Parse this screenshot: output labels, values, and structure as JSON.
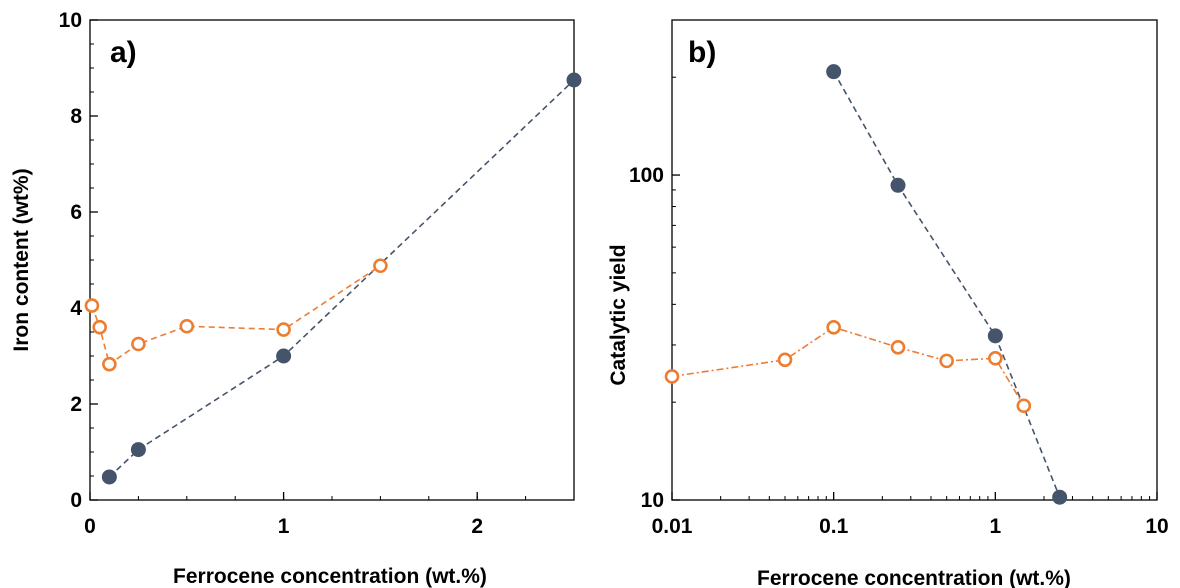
{
  "chart_data": [
    {
      "type": "line",
      "panel_label": "a)",
      "xlabel": "Ferrocene concentration (wt.%)",
      "ylabel": "Iron content (wt%)",
      "xlim": [
        0,
        2.5
      ],
      "ylim": [
        0,
        10
      ],
      "xscale": "linear",
      "yscale": "linear",
      "x_ticks": [
        0,
        1,
        2
      ],
      "x_tick_labels": [
        "0",
        "1",
        "2"
      ],
      "y_ticks": [
        0,
        2,
        4,
        6,
        8,
        10
      ],
      "y_tick_labels": [
        "0",
        "2",
        "4",
        "6",
        "8",
        "10"
      ],
      "grid": false,
      "series": [
        {
          "color": "#44546a",
          "marker": "filled-circle",
          "line_style": "dashed",
          "x": [
            0.1,
            0.25,
            1,
            2.5
          ],
          "y": [
            0.48,
            1.05,
            3.0,
            8.75
          ]
        },
        {
          "color": "#ed7d31",
          "marker": "open-circle",
          "line_style": "dashed",
          "x": [
            0.01,
            0.05,
            0.1,
            0.25,
            0.5,
            1,
            1.5
          ],
          "y": [
            4.05,
            3.6,
            2.83,
            3.25,
            3.62,
            3.55,
            4.88
          ]
        }
      ]
    },
    {
      "type": "line",
      "panel_label": "b)",
      "xlabel": "Ferrocene concentration (wt.%)",
      "ylabel": "Catalytic yield",
      "xlim": [
        0.01,
        10
      ],
      "ylim": [
        10,
        300
      ],
      "xscale": "log",
      "yscale": "log",
      "x_ticks": [
        0.01,
        0.1,
        1,
        10
      ],
      "x_tick_labels": [
        "0.01",
        "0.1",
        "1",
        "10"
      ],
      "y_ticks": [
        10,
        100
      ],
      "y_tick_labels": [
        "10",
        "100"
      ],
      "grid": false,
      "series": [
        {
          "color": "#44546a",
          "marker": "filled-circle",
          "line_style": "dashed",
          "x": [
            0.1,
            0.25,
            1,
            2.5
          ],
          "y": [
            208,
            93,
            32,
            10.2
          ]
        },
        {
          "color": "#ed7d31",
          "marker": "open-circle",
          "line_style": "dash-dot",
          "x": [
            0.01,
            0.05,
            0.1,
            0.25,
            0.5,
            1,
            1.5
          ],
          "y": [
            24,
            27,
            34,
            29.5,
            26.8,
            27.3,
            19.5
          ]
        }
      ]
    }
  ]
}
